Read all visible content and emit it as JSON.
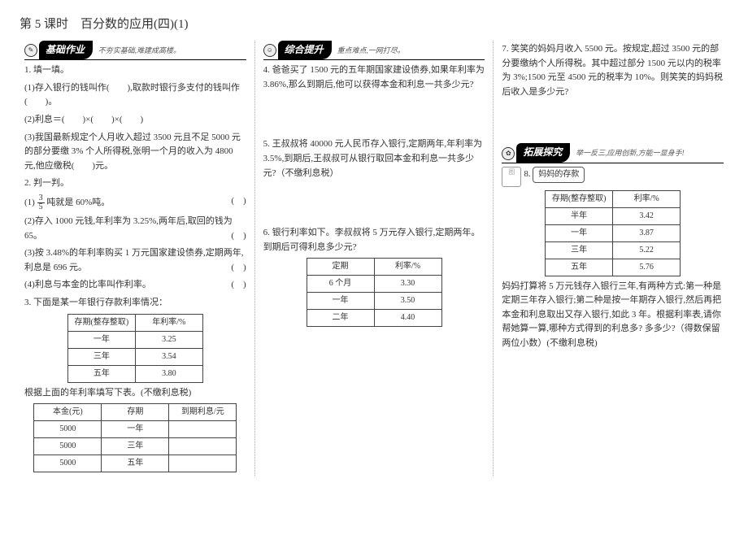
{
  "title": "第 5 课时　百分数的应用(四)(1)",
  "ribbons": {
    "basic": "基础作业",
    "basic_sub": "不夯实基础,难建成高楼。",
    "synth": "综合提升",
    "synth_sub": "重点难点,一网打尽。",
    "ext": "拓展探究",
    "ext_sub": "举一反三,应用创新,方能一显身手!"
  },
  "col1": {
    "q1": "1. 填一填。",
    "q1_1": "(1)存入银行的钱叫作(　　),取款时银行多支付的钱叫作(　　)。",
    "q1_2": "(2)利息＝(　　)×(　　)×(　　)",
    "q1_3": "(3)我国最新规定个人月收入超过 3500 元且不足 5000 元的部分要缴 3% 个人所得税,张明一个月的收入为 4800 元,他应缴税(　　)元。",
    "q2": "2. 判一判。",
    "q2_1a": "(1)",
    "q2_1b": "吨就是 60%吨。",
    "q2_2": "(2)存入 1000 元钱,年利率为 3.25%,两年后,取回的钱为 65。",
    "q2_3": "(3)按 3.48%的年利率购买 1 万元国家建设债券,定期两年,利息是 696 元。",
    "q2_4": "(4)利息与本金的比率叫作利率。",
    "q3": "3. 下面是某一年银行存款利率情况：",
    "t1h1": "存期(整存整取)",
    "t1h2": "年利率/%",
    "t1r1a": "一年",
    "t1r1b": "3.25",
    "t1r2a": "三年",
    "t1r2b": "3.54",
    "t1r3a": "五年",
    "t1r3b": "3.80",
    "q3b": "根据上面的年利率填写下表。(不缴利息税)",
    "t2h1": "本金(元)",
    "t2h2": "存期",
    "t2h3": "到期利息/元",
    "t2r1a": "5000",
    "t2r1b": "一年",
    "t2r1c": "",
    "t2r2a": "5000",
    "t2r2b": "三年",
    "t2r2c": "",
    "t2r3a": "5000",
    "t2r3b": "五年",
    "t2r3c": ""
  },
  "col2": {
    "q4": "4. 爸爸买了 1500 元的五年期国家建设债券,如果年利率为 3.86%,那么到期后,他可以获得本金和利息一共多少元?",
    "q5": "5. 王叔叔将 40000 元人民币存入银行,定期两年,年利率为 3.5%,到期后,王叔叔可从银行取回本金和利息一共多少元?（不缴利息税）",
    "q6": "6. 银行利率如下。李叔叔将 5 万元存入银行,定期两年。到期后可得利息多少元?",
    "t3h1": "定期",
    "t3h2": "利率/%",
    "t3r1a": "6 个月",
    "t3r1b": "3.30",
    "t3r2a": "一年",
    "t3r2b": "3.50",
    "t3r3a": "二年",
    "t3r3b": "4.40"
  },
  "col3": {
    "q7": "7. 笑笑的妈妈月收入 5500 元。按规定,超过 3500 元的部分要缴纳个人所得税。其中超过部分 1500 元以内的税率为 3%;1500 元至 4500 元的税率为 10%。则笑笑的妈妈税后收入是多少元?",
    "q8_bubble": "妈妈的存款",
    "q8": "8.",
    "t4h1": "存期(整存整取)",
    "t4h2": "利率/%",
    "t4r1a": "半年",
    "t4r1b": "3.42",
    "t4r2a": "一年",
    "t4r2b": "3.87",
    "t4r3a": "三年",
    "t4r3b": "5.22",
    "t4r4a": "五年",
    "t4r4b": "5.76",
    "q8txt": "妈妈打算将 5 万元钱存入银行三年,有两种方式:第一种是定期三年存入银行;第二种是按一年期存入银行,然后再把本金和利息取出又存入银行,如此 3 年。根据利率表,请你帮她算一算,哪种方式得到的利息多? 多多少?（得数保留两位小数）(不缴利息税)"
  }
}
